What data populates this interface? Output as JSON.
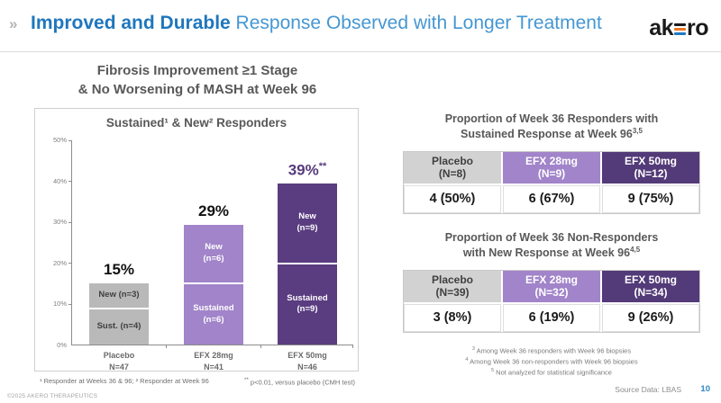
{
  "header": {
    "chevron": "»",
    "title_bold": "Improved and Durable",
    "title_rest": " Response Observed with Longer Treatment",
    "logo_prefix": "ak",
    "logo_suffix": "ro",
    "logo_colors": {
      "top": "#1a1a1a",
      "middle": "#e87722",
      "bottom": "#1f78c1"
    }
  },
  "chart_data": {
    "type": "bar",
    "stacked": true,
    "title_lines": [
      "Fibrosis Improvement ≥1 Stage",
      "& No Worsening of MASH at Week 96"
    ],
    "subtitle": "Sustained¹ & New² Responders",
    "ylim": [
      0,
      50
    ],
    "ytick_step": 10,
    "ytick_labels": [
      "0%",
      "10%",
      "20%",
      "30%",
      "40%",
      "50%"
    ],
    "groups": [
      {
        "category_lines": [
          "Placebo",
          "N=47"
        ],
        "total_label": "15%",
        "total_stars": "",
        "total_color": "#111111",
        "bar_color": "#b9b9b9",
        "segment_text_color": "#3f3f3f",
        "segments": [
          {
            "name": "Sustained",
            "label_lines": [
              "Sust. (n=4)"
            ],
            "count": 4,
            "pct": 8.5
          },
          {
            "name": "New",
            "label_lines": [
              "New (n=3)"
            ],
            "count": 3,
            "pct": 6.4
          }
        ]
      },
      {
        "category_lines": [
          "EFX 28mg",
          "N=41"
        ],
        "total_label": "29%",
        "total_stars": "",
        "total_color": "#111111",
        "bar_color": "#a184c9",
        "segment_text_color": "#ffffff",
        "segments": [
          {
            "name": "Sustained",
            "label_lines": [
              "Sustained",
              "(n=6)"
            ],
            "count": 6,
            "pct": 14.6
          },
          {
            "name": "New",
            "label_lines": [
              "New",
              "(n=6)"
            ],
            "count": 6,
            "pct": 14.6
          }
        ]
      },
      {
        "category_lines": [
          "EFX 50mg",
          "N=46"
        ],
        "total_label": "39%",
        "total_stars": "**",
        "total_color": "#563a7c",
        "bar_color": "#5a3c80",
        "segment_text_color": "#ffffff",
        "segments": [
          {
            "name": "Sustained",
            "label_lines": [
              "Sustained",
              "(n=9)"
            ],
            "count": 9,
            "pct": 19.6
          },
          {
            "name": "New",
            "label_lines": [
              "New",
              "(n=9)"
            ],
            "count": 9,
            "pct": 19.6
          }
        ]
      }
    ],
    "footnote_left": "¹ Responder at Weeks 36 & 96; ² Responder at Week 96",
    "footnote_right_sup": "**",
    "footnote_right_text": " p<0.01, versus placebo (CMH test)"
  },
  "tables": [
    {
      "title_lines": [
        "Proportion of Week 36 Responders with",
        "Sustained Response at Week 96"
      ],
      "title_sup": "3,5",
      "columns": [
        {
          "header_lines": [
            "Placebo",
            "(N=8)"
          ],
          "value": "4 (50%)",
          "header_bg": "#d2d2d2",
          "header_text": "#3f3f3f"
        },
        {
          "header_lines": [
            "EFX 28mg",
            "(N=9)"
          ],
          "value": "6 (67%)",
          "header_bg": "#a184c9",
          "header_text": "#ffffff"
        },
        {
          "header_lines": [
            "EFX 50mg",
            "(N=12)"
          ],
          "value": "9 (75%)",
          "header_bg": "#533a78",
          "header_text": "#ffffff"
        }
      ]
    },
    {
      "title_lines": [
        "Proportion of Week 36 Non-Responders",
        "with New Response at Week 96"
      ],
      "title_sup": "4,5",
      "columns": [
        {
          "header_lines": [
            "Placebo",
            "(N=39)"
          ],
          "value": "3 (8%)",
          "header_bg": "#d2d2d2",
          "header_text": "#3f3f3f"
        },
        {
          "header_lines": [
            "EFX 28mg",
            "(N=32)"
          ],
          "value": "6 (19%)",
          "header_bg": "#a184c9",
          "header_text": "#ffffff"
        },
        {
          "header_lines": [
            "EFX 50mg",
            "(N=34)"
          ],
          "value": "9 (26%)",
          "header_bg": "#533a78",
          "header_text": "#ffffff"
        }
      ]
    }
  ],
  "table_footnotes": [
    {
      "sup": "3",
      "text": " Among Week 36 responders with Week 96 biopsies"
    },
    {
      "sup": "4",
      "text": " Among Week 36 non-responders with Week 96 biopsies"
    },
    {
      "sup": "5",
      "text": " Not analyzed for statistical significance"
    }
  ],
  "footer": {
    "copyright": "©2025 AKERO THERAPEUTICS",
    "source": "Source Data: LBAS",
    "page": "10"
  }
}
